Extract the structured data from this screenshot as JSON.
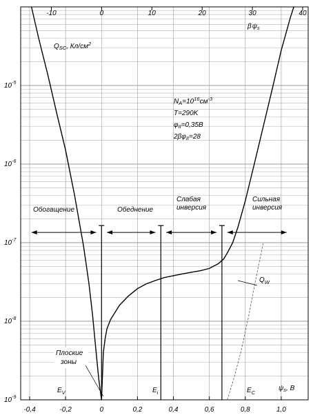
{
  "chart_data": {
    "type": "line",
    "y_scale": "log",
    "ylim": [
      1e-09,
      0.0001
    ],
    "xlim": [
      -0.45,
      1.15
    ],
    "top_xlim": [
      -16.1,
      41.1
    ],
    "bottom_ticks": [
      {
        "v": -0.4,
        "label": "-0,4"
      },
      {
        "v": -0.2,
        "label": "-0,2"
      },
      {
        "v": 0,
        "label": "0"
      },
      {
        "v": 0.2,
        "label": "0,2"
      },
      {
        "v": 0.4,
        "label": "0,4"
      },
      {
        "v": 0.6,
        "label": "0,6"
      },
      {
        "v": 0.8,
        "label": "0,8"
      },
      {
        "v": 1.0,
        "label": "1,0"
      }
    ],
    "top_ticks": [
      {
        "v": -10,
        "label": "-10"
      },
      {
        "v": 0,
        "label": "0"
      },
      {
        "v": 10,
        "label": "10"
      },
      {
        "v": 20,
        "label": "20"
      },
      {
        "v": 30,
        "label": "30"
      },
      {
        "v": 40,
        "label": "40"
      }
    ],
    "y_ticks": [
      {
        "v": 1e-05,
        "mant": "10",
        "exp": "-5"
      },
      {
        "v": 1e-06,
        "mant": "10",
        "exp": "-6"
      },
      {
        "v": 1e-07,
        "mant": "10",
        "exp": "-7"
      },
      {
        "v": 1e-08,
        "mant": "10",
        "exp": "-8"
      },
      {
        "v": 1e-09,
        "mant": "10",
        "exp": "-9"
      }
    ],
    "ylabel": {
      "main": "Q",
      "sub": "SC",
      "rest": ", Кл/см",
      "sup": "2"
    },
    "xlabel_bottom": {
      "main": "ψ",
      "sub": "s",
      "rest": ", В"
    },
    "xlabel_top": {
      "beta": "β",
      "psi": "ψ",
      "sub": "s"
    },
    "grid": true,
    "series": [
      {
        "values": [
          [
            -0.39,
            0.0001
          ],
          [
            -0.35,
            4e-05
          ],
          [
            -0.3,
            1.4e-05
          ],
          [
            -0.25,
            4.5e-06
          ],
          [
            -0.2,
            1.5e-06
          ],
          [
            -0.15,
            4e-07
          ],
          [
            -0.1,
            9e-08
          ],
          [
            -0.07,
            3e-08
          ],
          [
            -0.05,
            1.2e-08
          ],
          [
            -0.03,
            4e-09
          ],
          [
            -0.015,
            1.8e-09
          ],
          [
            0,
            1e-09
          ],
          [
            0.01,
            4e-09
          ],
          [
            0.02,
            6e-09
          ],
          [
            0.03,
            8e-09
          ],
          [
            0.05,
            1.05e-08
          ],
          [
            0.1,
            1.6e-08
          ],
          [
            0.15,
            2.1e-08
          ],
          [
            0.2,
            2.6e-08
          ],
          [
            0.25,
            3e-08
          ],
          [
            0.3,
            3.3e-08
          ],
          [
            0.35,
            3.6e-08
          ],
          [
            0.4,
            3.8e-08
          ],
          [
            0.45,
            4e-08
          ],
          [
            0.5,
            4.2e-08
          ],
          [
            0.55,
            4.4e-08
          ],
          [
            0.6,
            4.7e-08
          ],
          [
            0.65,
            5.4e-08
          ],
          [
            0.68,
            6.2e-08
          ],
          [
            0.7,
            7.4e-08
          ],
          [
            0.73,
            1e-07
          ],
          [
            0.76,
            1.6e-07
          ],
          [
            0.8,
            3.4e-07
          ],
          [
            0.85,
            1e-06
          ],
          [
            0.9,
            3e-06
          ],
          [
            0.95,
            9e-06
          ],
          [
            1.0,
            2.8e-05
          ],
          [
            1.05,
            7.2e-05
          ],
          [
            1.07,
            0.0001
          ]
        ]
      },
      {
        "dashed": true,
        "values": [
          [
            0.7,
            1e-09
          ],
          [
            0.74,
            2e-09
          ],
          [
            0.78,
            4.5e-09
          ],
          [
            0.82,
            1.2e-08
          ],
          [
            0.86,
            3.6e-08
          ],
          [
            0.9,
            1e-07
          ]
        ]
      }
    ],
    "vlines": [
      {
        "x": 0,
        "from": 1e-09,
        "to": 1.65e-07,
        "name": "flatband-line"
      },
      {
        "x": 0.33,
        "from": 1e-09,
        "to": 1.65e-07,
        "name": "ei-line"
      },
      {
        "x": 0.67,
        "from": 1e-09,
        "to": 1.65e-07,
        "name": "strong-inversion-line"
      }
    ],
    "arrows": [
      {
        "from": -0.39,
        "to": -0.03,
        "y": 1.35e-07,
        "name": "accumulation-arrow"
      },
      {
        "from": 0.03,
        "to": 0.3,
        "y": 1.35e-07,
        "name": "depletion-arrow"
      },
      {
        "from": 0.36,
        "to": 0.64,
        "y": 1.35e-07,
        "name": "weak-inversion-arrow"
      },
      {
        "from": 0.7,
        "to": 1.03,
        "y": 1.35e-07,
        "name": "strong-inversion-arrow"
      }
    ],
    "region_labels": {
      "accumulation": "Обогащение",
      "depletion": "Обеднение",
      "weak_1": "Слабая",
      "weak_2": "инверсия",
      "strong_1": "Сильная",
      "strong_2": "инверсия"
    },
    "params": {
      "na_main": "N",
      "na_sub": "A",
      "na_eq": "=10",
      "na_sup": "16",
      "na_unit": "см",
      "na_unit_sup": "-3",
      "t": "T=290K",
      "phi_main": "φ",
      "phi_sub": "II",
      "phi_rest": "=0,35В",
      "beta_pre": "2βφ",
      "beta_sub": "II",
      "beta_rest": "=28"
    },
    "energy_labels": {
      "ev_main": "E",
      "ev_sub": "V",
      "ei_main": "E",
      "ei_sub": "i",
      "ec_main": "E",
      "ec_sub": "C"
    },
    "flatband_1": "Плоские",
    "flatband_2": "зоны",
    "qw_main": "Q",
    "qw_sub": "W"
  }
}
